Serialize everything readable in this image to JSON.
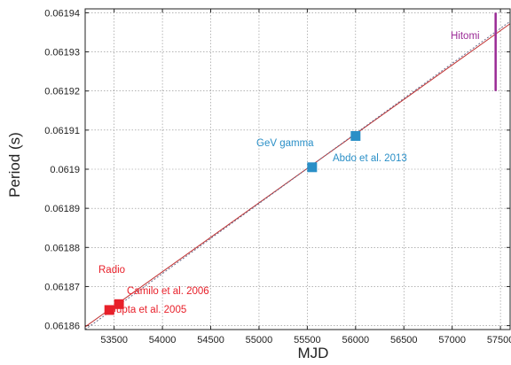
{
  "chart_data": {
    "type": "scatter",
    "title": "",
    "xlabel": "MJD",
    "ylabel": "Period (s)",
    "xlim": [
      53200,
      57600
    ],
    "ylim": [
      0.061859,
      0.061941
    ],
    "x_ticks": [
      53500,
      54000,
      54500,
      55000,
      55500,
      56000,
      56500,
      57000,
      57500
    ],
    "y_ticks": [
      0.06186,
      0.06187,
      0.06188,
      0.06189,
      0.0619,
      0.06191,
      0.06192,
      0.06193,
      0.06194
    ],
    "grid": true,
    "colors": {
      "radio": "#e8202a",
      "gamma": "#2a8fc7",
      "hitomi": "#9b2b96",
      "fit_line": "#c03030",
      "fit_line_dashed": "#6a6a8a",
      "text": "#222222",
      "grid": "#888888"
    },
    "fit_lines": [
      {
        "style": "solid",
        "x": [
          53200,
          57600
        ],
        "y": [
          0.0618597,
          0.0619372
        ]
      },
      {
        "style": "dotted",
        "x": [
          53200,
          57600
        ],
        "y": [
          0.061859,
          0.0619378
        ]
      }
    ],
    "series": [
      {
        "name": "Radio",
        "points": [
          {
            "x": 53450,
            "y": 0.061864,
            "label": "Gupta et al. 2005"
          },
          {
            "x": 53550,
            "y": 0.0618655,
            "label": "Camilo et al. 2006"
          }
        ]
      },
      {
        "name": "GeV gamma",
        "points": [
          {
            "x": 55550,
            "y": 0.0619005,
            "label": ""
          },
          {
            "x": 56000,
            "y": 0.0619085,
            "label": "Abdo et al. 2013"
          }
        ]
      },
      {
        "name": "Hitomi",
        "segment": {
          "x": 57450,
          "y_low": 0.06192,
          "y_high": 0.06194
        }
      }
    ]
  }
}
